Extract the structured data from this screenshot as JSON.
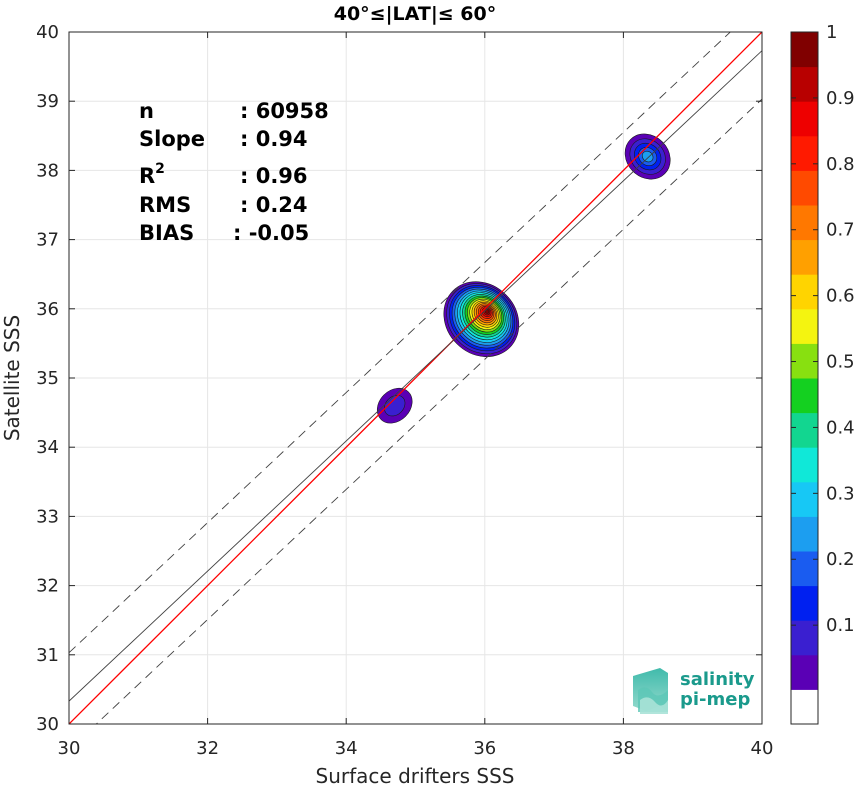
{
  "chart_data": {
    "type": "heatmap",
    "title": "40°≤|LAT|≤ 60°",
    "xlabel": "Surface drifters SSS",
    "ylabel": "Satellite SSS",
    "xlim": [
      30,
      40
    ],
    "ylim": [
      30,
      40
    ],
    "xticks": [
      30,
      32,
      34,
      36,
      38,
      40
    ],
    "yticks": [
      30,
      31,
      32,
      33,
      34,
      35,
      36,
      37,
      38,
      39,
      40
    ],
    "grid": true,
    "stats": [
      {
        "label": "n",
        "value": ": 60958"
      },
      {
        "label": "Slope",
        "value": ": 0.94"
      },
      {
        "label": "R",
        "sup": "2",
        "value": ": 0.96"
      },
      {
        "label": "RMS",
        "value": ": 0.24"
      },
      {
        "label": "BIAS",
        "value": ": -0.05"
      }
    ],
    "lines": [
      {
        "name": "1:1",
        "color": "#ff0000",
        "style": "solid",
        "slope": 1,
        "intercept": 0
      },
      {
        "name": "fit",
        "color": "#404040",
        "style": "solid",
        "slope": 0.94,
        "intercept_at_30": 30.33
      },
      {
        "name": "fit+",
        "color": "#404040",
        "style": "dashed",
        "offset": 0.7
      },
      {
        "name": "fit-",
        "color": "#404040",
        "style": "dashed",
        "offset": -0.7
      }
    ],
    "clusters": [
      {
        "x": 34.7,
        "y": 34.6,
        "rx": 0.28,
        "ry": 0.22,
        "peak": 0.1
      },
      {
        "x": 35.95,
        "y": 35.85,
        "rx": 0.5,
        "ry": 0.58,
        "peak": 1.0
      },
      {
        "x": 38.35,
        "y": 38.2,
        "rx": 0.3,
        "ry": 0.35,
        "peak": 0.25
      }
    ],
    "colorbar": {
      "ticks": [
        "0.1",
        "0.2",
        "0.3",
        "0.4",
        "0.5",
        "0.6",
        "0.7",
        "0.8",
        "0.9",
        "1"
      ],
      "colors": [
        "#ffffff",
        "#5a00b5",
        "#3a1fd0",
        "#0020f0",
        "#1a5cf0",
        "#1c9ef0",
        "#17c8f5",
        "#10e8d8",
        "#12d690",
        "#14d020",
        "#88e010",
        "#f4f410",
        "#ffd400",
        "#ffa000",
        "#ff7800",
        "#ff4a00",
        "#ff1a00",
        "#ee0000",
        "#b80000",
        "#800000"
      ]
    }
  },
  "logo": {
    "line1": "salinity",
    "line2": "pi-mep"
  }
}
